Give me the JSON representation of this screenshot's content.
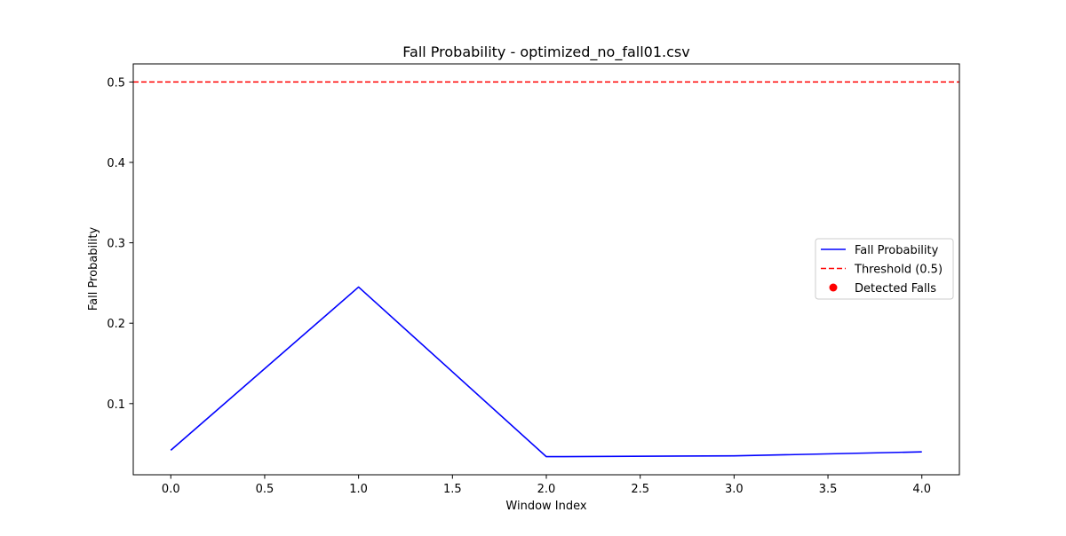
{
  "chart_data": {
    "type": "line",
    "title": "Fall Probability - optimized_no_fall01.csv",
    "xlabel": "Window Index",
    "ylabel": "Fall Probability",
    "xlim": [
      -0.2,
      4.2
    ],
    "ylim": [
      0.0115,
      0.5225
    ],
    "xticks": [
      0.0,
      0.5,
      1.0,
      1.5,
      2.0,
      2.5,
      3.0,
      3.5,
      4.0
    ],
    "xtick_labels": [
      "0.0",
      "0.5",
      "1.0",
      "1.5",
      "2.0",
      "2.5",
      "3.0",
      "3.5",
      "4.0"
    ],
    "yticks": [
      0.1,
      0.2,
      0.3,
      0.4,
      0.5
    ],
    "ytick_labels": [
      "0.1",
      "0.2",
      "0.3",
      "0.4",
      "0.5"
    ],
    "grid": false,
    "legend_position": "center-right",
    "series": [
      {
        "name": "Fall Probability",
        "type": "line",
        "color": "#0000ff",
        "x": [
          0,
          1,
          2,
          3,
          4
        ],
        "y": [
          0.042,
          0.245,
          0.034,
          0.035,
          0.04
        ]
      },
      {
        "name": "Threshold (0.5)",
        "type": "hline",
        "color": "#ff0000",
        "style": "dashed",
        "y": 0.5
      },
      {
        "name": "Detected Falls",
        "type": "scatter",
        "color": "#ff0000",
        "x": [],
        "y": []
      }
    ]
  }
}
